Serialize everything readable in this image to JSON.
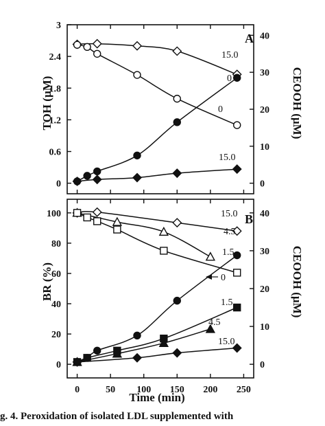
{
  "chart_data": [
    {
      "type": "line",
      "panel_label": "A",
      "xlabel": "Time (min)",
      "ylabel": "TOH (µM)",
      "ylabel_right": "CEOOH (µM)",
      "xlim": [
        -15,
        265
      ],
      "ylim": [
        -0.2,
        3.0
      ],
      "ylim_right": [
        -2.857,
        42.857
      ],
      "x_ticks": [],
      "x_tick_labels": [],
      "y_ticks": [
        0,
        0.6,
        1.2,
        1.8,
        2.4,
        3
      ],
      "y_tick_labels": [
        "0",
        "0.6",
        "1.2",
        "1.8",
        "2.4",
        "3"
      ],
      "y_ticks_right": [
        0,
        10,
        20,
        30,
        40
      ],
      "y_tick_labels_right": [
        "0",
        "10",
        "20",
        "30",
        "40"
      ],
      "series": [
        {
          "name": "15.0",
          "axis": "left",
          "marker": "diamond-open",
          "x": [
            0,
            30,
            90,
            150,
            240
          ],
          "y": [
            2.63,
            2.64,
            2.6,
            2.5,
            2.06
          ]
        },
        {
          "name": "0",
          "axis": "left",
          "marker": "circle-open",
          "x": [
            0,
            15,
            30,
            90,
            150,
            240
          ],
          "y": [
            2.62,
            2.58,
            2.45,
            2.05,
            1.6,
            1.1
          ]
        },
        {
          "name": "0",
          "axis": "right",
          "marker": "circle-filled",
          "x": [
            0,
            15,
            30,
            90,
            150,
            240
          ],
          "y": [
            0.5,
            2.0,
            3.2,
            7.5,
            16.5,
            28.5
          ]
        },
        {
          "name": "15.0",
          "axis": "right",
          "marker": "diamond-filled",
          "x": [
            0,
            30,
            90,
            150,
            240
          ],
          "y": [
            0.5,
            1.0,
            1.5,
            2.7,
            3.8
          ]
        }
      ]
    },
    {
      "type": "line",
      "panel_label": "B",
      "xlabel": "Time (min)",
      "ylabel": "BR (%)",
      "ylabel_right": "CEOOH (µM)",
      "xlim": [
        -15,
        265
      ],
      "ylim": [
        -9,
        109
      ],
      "ylim_right": [
        -3.6,
        43.6
      ],
      "x_ticks": [
        0,
        50,
        100,
        150,
        200,
        250
      ],
      "x_tick_labels": [
        "0",
        "50",
        "100",
        "150",
        "200",
        "250"
      ],
      "y_ticks": [
        0,
        20,
        40,
        60,
        80,
        100
      ],
      "y_tick_labels": [
        "0",
        "20",
        "40",
        "60",
        "80",
        "100"
      ],
      "y_ticks_right": [
        0,
        10,
        20,
        30,
        40
      ],
      "y_tick_labels_right": [
        "0",
        "10",
        "20",
        "30",
        "40"
      ],
      "series": [
        {
          "name": "15.0",
          "axis": "left",
          "marker": "diamond-open",
          "x": [
            0,
            30,
            150,
            240
          ],
          "y": [
            100,
            100.5,
            93.5,
            88
          ]
        },
        {
          "name": "4.5",
          "axis": "left",
          "marker": "triangle-open",
          "x": [
            0,
            60,
            130,
            200
          ],
          "y": [
            100,
            94,
            87.5,
            71
          ]
        },
        {
          "name": "1.5",
          "axis": "left",
          "marker": "square-open",
          "x": [
            0,
            15,
            30,
            60,
            130,
            240
          ],
          "y": [
            100,
            97,
            94.5,
            89,
            75,
            60.5
          ]
        },
        {
          "name": "0",
          "axis": "right",
          "marker": "circle-filled",
          "x": [
            0,
            15,
            30,
            90,
            150,
            240
          ],
          "y": [
            0.6,
            1.7,
            3.6,
            7.6,
            16.8,
            28.8
          ]
        },
        {
          "name": "1.5",
          "axis": "right",
          "marker": "square-filled",
          "x": [
            0,
            15,
            60,
            130,
            240
          ],
          "y": [
            0.6,
            1.7,
            3.6,
            6.8,
            15.0
          ]
        },
        {
          "name": "4.5",
          "axis": "right",
          "marker": "triangle-filled",
          "x": [
            0,
            60,
            130,
            200
          ],
          "y": [
            0.6,
            2.8,
            5.6,
            9.3
          ]
        },
        {
          "name": "15.0",
          "axis": "right",
          "marker": "diamond-filled",
          "x": [
            0,
            90,
            150,
            240
          ],
          "y": [
            0.6,
            1.7,
            3.0,
            4.3
          ]
        }
      ]
    }
  ],
  "annotations": {
    "a_15": "15.0",
    "a_0_up": "0",
    "a_0_low": "0",
    "a_15_low": "15.0",
    "b_15": "15.0",
    "b_45": "4.5",
    "b_15b": "1.5",
    "b_0": "0",
    "b_15c": "1.5",
    "b_45b": "4.5",
    "b_15d": "15.0"
  },
  "caption": "g. 4. Peroxidation of isolated LDL supplemented with"
}
